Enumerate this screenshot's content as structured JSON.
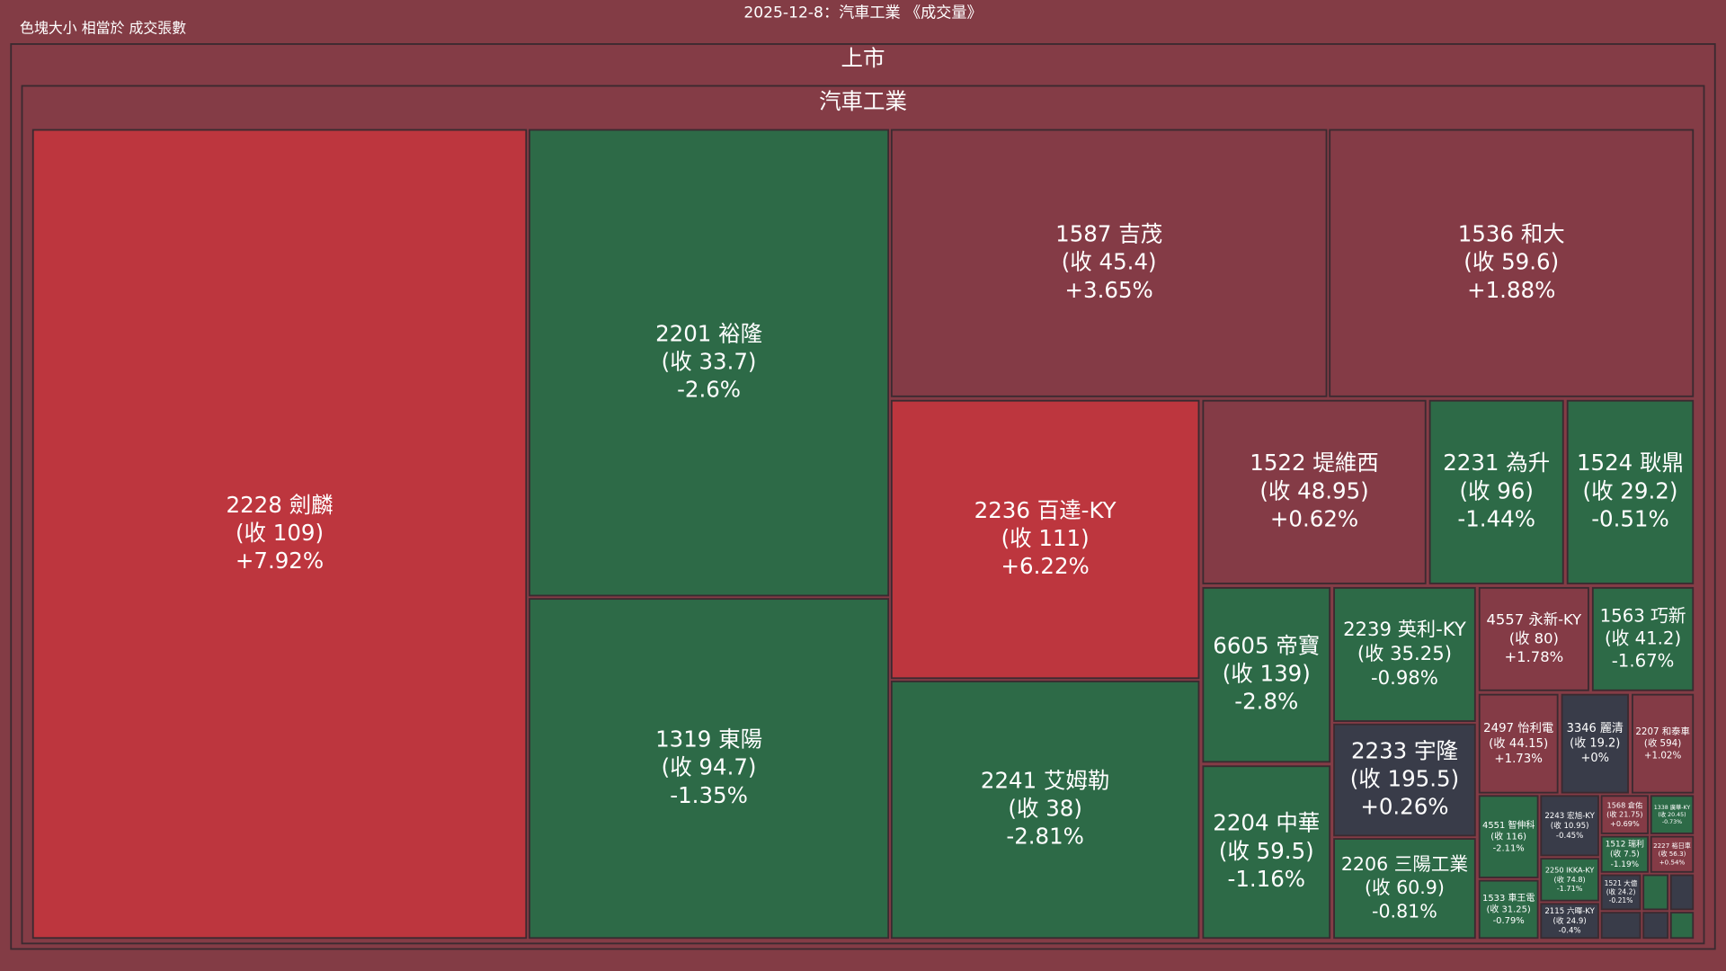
{
  "header": {
    "title": "2025-12-8：汽車工業 《成交量》",
    "note": "色塊大小 相當於 成交張數"
  },
  "market": "上市",
  "sector": "汽車工業",
  "tiles": [
    {
      "name": "2228 劍麟",
      "close": "(收 109)",
      "change": "+7.92%",
      "color": "#bd363e"
    },
    {
      "name": "2201 裕隆",
      "close": "(收 33.7)",
      "change": "-2.6%",
      "color": "#2d6a47"
    },
    {
      "name": "1319 東陽",
      "close": "(收 94.7)",
      "change": "-1.35%",
      "color": "#2d6a47"
    },
    {
      "name": "1587 吉茂",
      "close": "(收 45.4)",
      "change": "+3.65%",
      "color": "#843b46"
    },
    {
      "name": "1536 和大",
      "close": "(收 59.6)",
      "change": "+1.88%",
      "color": "#843b46"
    },
    {
      "name": "2236 百達-KY",
      "close": "(收 111)",
      "change": "+6.22%",
      "color": "#bd363e"
    },
    {
      "name": "2241 艾姆勒",
      "close": "(收 38)",
      "change": "-2.81%",
      "color": "#2d6a47"
    },
    {
      "name": "1522 堤維西",
      "close": "(收 48.95)",
      "change": "+0.62%",
      "color": "#843b46"
    },
    {
      "name": "2231 為升",
      "close": "(收 96)",
      "change": "-1.44%",
      "color": "#2d6a47"
    },
    {
      "name": "1524 耿鼎",
      "close": "(收 29.2)",
      "change": "-0.51%",
      "color": "#2d6a47"
    },
    {
      "name": "6605 帝寶",
      "close": "(收 139)",
      "change": "-2.8%",
      "color": "#2d6a47"
    },
    {
      "name": "2204 中華",
      "close": "(收 59.5)",
      "change": "-1.16%",
      "color": "#2d6a47"
    },
    {
      "name": "2239 英利-KY",
      "close": "(收 35.25)",
      "change": "-0.98%",
      "color": "#2d6a47"
    },
    {
      "name": "2233 宇隆",
      "close": "(收 195.5)",
      "change": "+0.26%",
      "color": "#393c49"
    },
    {
      "name": "2206 三陽工業",
      "close": "(收 60.9)",
      "change": "-0.81%",
      "color": "#2d6a47"
    },
    {
      "name": "4557 永新-KY",
      "close": "(收 80)",
      "change": "+1.78%",
      "color": "#843b46"
    },
    {
      "name": "1563 巧新",
      "close": "(收 41.2)",
      "change": "-1.67%",
      "color": "#2d6a47"
    },
    {
      "name": "2497 怡利電",
      "close": "(收 44.15)",
      "change": "+1.73%",
      "color": "#843b46"
    },
    {
      "name": "3346 麗清",
      "close": "(收 19.2)",
      "change": "+0%",
      "color": "#393c49"
    },
    {
      "name": "2207 和泰車",
      "close": "(收 594)",
      "change": "+1.02%",
      "color": "#843b46"
    },
    {
      "name": "4551 智伸科",
      "close": "(收 116)",
      "change": "-2.11%",
      "color": "#2d6a47"
    },
    {
      "name": "1533 車王電",
      "close": "(收 31.25)",
      "change": "-0.79%",
      "color": "#2d6a47"
    },
    {
      "name": "2243 宏旭-KY",
      "close": "(收 10.95)",
      "change": "-0.45%",
      "color": "#393c49"
    },
    {
      "name": "2250 IKKA-KY",
      "close": "(收 74.8)",
      "change": "-1.71%",
      "color": "#2d6a47"
    },
    {
      "name": "2115 六暉-KY",
      "close": "(收 24.9)",
      "change": "-0.4%",
      "color": "#393c49"
    },
    {
      "name": "1568 倉佑",
      "close": "(收 21.75)",
      "change": "+0.69%",
      "color": "#843b46"
    },
    {
      "name": "1338 廣華-KY",
      "close": "(收 20.45)",
      "change": "-0.73%",
      "color": "#2d6a47"
    },
    {
      "name": "1512 瑞利",
      "close": "(收 7.5)",
      "change": "-1.19%",
      "color": "#2d6a47"
    },
    {
      "name": "2227 裕日車",
      "close": "(收 56.3)",
      "change": "+0.54%",
      "color": "#843b46"
    },
    {
      "name": "1521 大億",
      "close": "(收 24.2)",
      "change": "-0.21%",
      "color": "#393c49"
    }
  ]
}
